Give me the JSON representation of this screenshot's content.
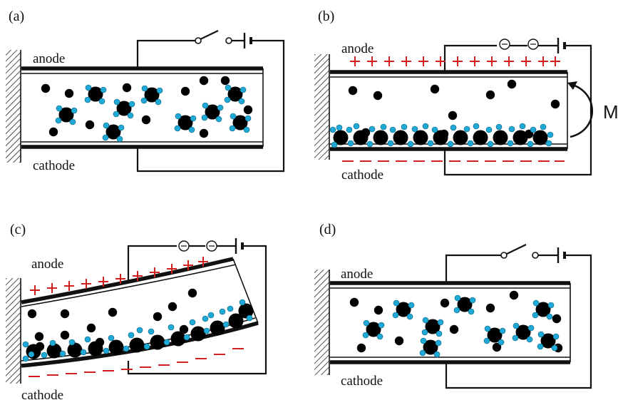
{
  "panels": [
    {
      "id": "a",
      "label": "(a)",
      "anode": "anode",
      "cathode": "cathode"
    },
    {
      "id": "b",
      "label": "(b)",
      "anode": "anode",
      "cathode": "cathode",
      "moment": "M"
    },
    {
      "id": "c",
      "label": "(c)",
      "anode": "anode",
      "cathode": "cathode"
    },
    {
      "id": "d",
      "label": "(d)",
      "anode": "anode",
      "cathode": "cathode"
    }
  ],
  "colors": {
    "charge": "#d22020",
    "cation_water": "#1ea9d6",
    "ink": "#111111"
  }
}
